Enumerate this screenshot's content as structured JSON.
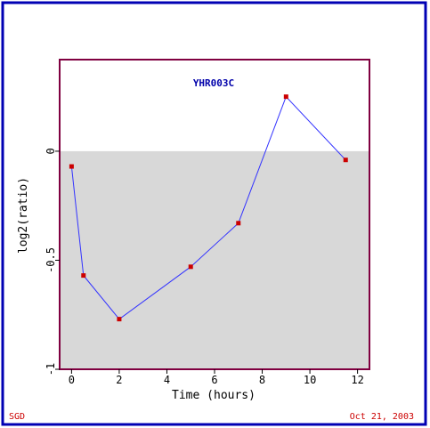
{
  "colors": {
    "frame": "#0000b4",
    "plot_border": "#800040",
    "negative_fill": "#d8d8d8",
    "line": "#3333ff",
    "marker": "#cc0000",
    "title": "#0000aa",
    "footer": "#cc0000",
    "axis_text": "#000000"
  },
  "footer": {
    "left": "SGD",
    "right": "Oct 21, 2003"
  },
  "chart_data": {
    "type": "line",
    "title": "YHR003C",
    "xlabel": "Time (hours)",
    "ylabel": "log2(ratio)",
    "xlim": [
      -0.5,
      12.5
    ],
    "ylim": [
      -1,
      0.42
    ],
    "xticks": [
      0,
      2,
      4,
      6,
      8,
      10,
      12
    ],
    "xtick_labels": [
      "0",
      "2",
      "4",
      "6",
      "8",
      "10",
      "12"
    ],
    "yticks": [
      0,
      -0.5,
      -1
    ],
    "ytick_labels": [
      "0",
      "-0.5",
      "-1"
    ],
    "shade_below_zero": true,
    "grid": false,
    "series": [
      {
        "x": [
          0,
          0.5,
          2,
          5,
          7,
          9,
          11.5
        ],
        "y": [
          -0.07,
          -0.57,
          -0.77,
          -0.53,
          -0.33,
          0.25,
          -0.04
        ]
      }
    ]
  }
}
